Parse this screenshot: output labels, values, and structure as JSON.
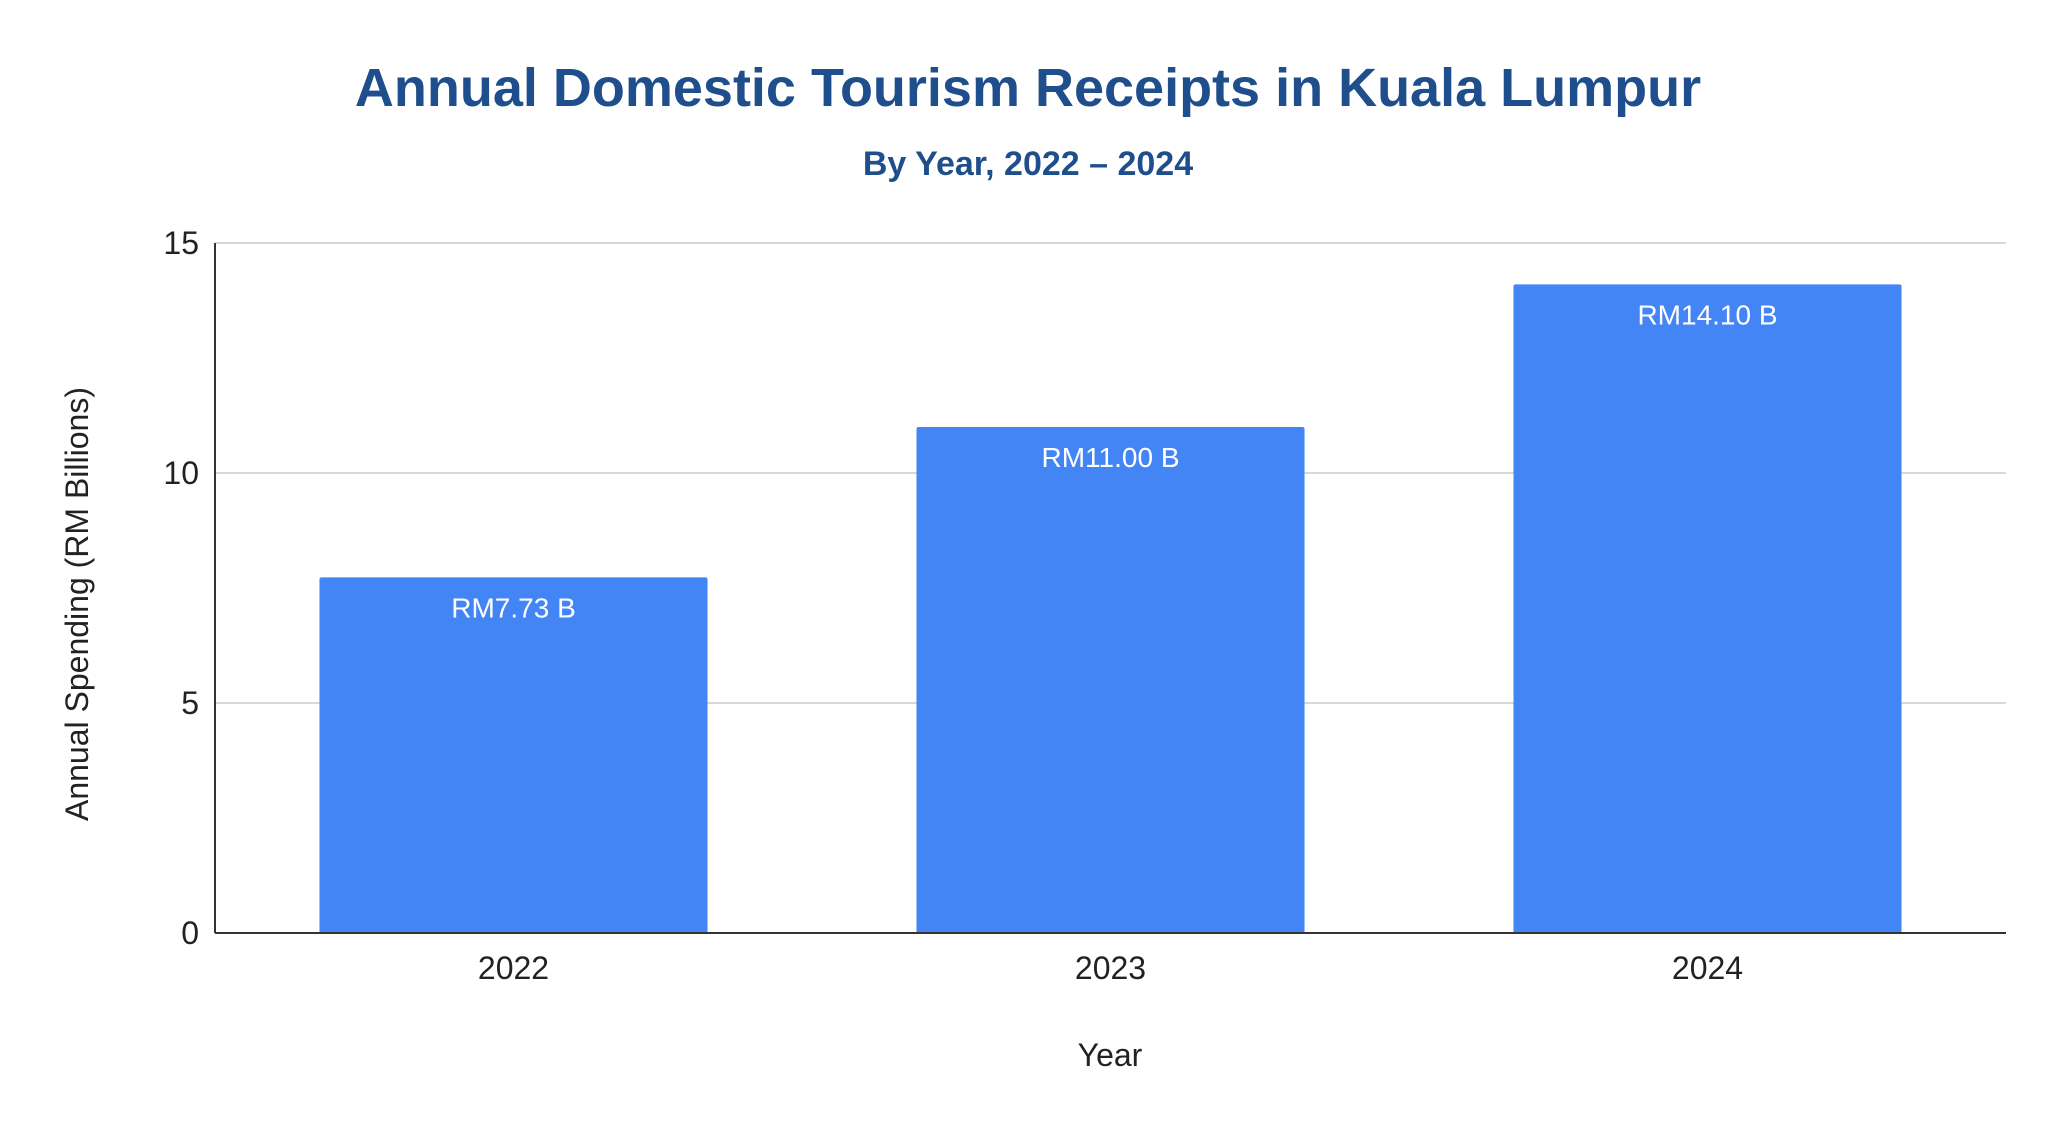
{
  "colors": {
    "title": "#1f4e8c",
    "bar": "#4385f5",
    "bar_label": "#ffffff",
    "grid": "#cccccc",
    "axis": "#333333"
  },
  "chart_data": {
    "type": "bar",
    "title": "Annual Domestic Tourism Receipts in Kuala Lumpur",
    "subtitle": "By Year, 2022 – 2024",
    "xlabel": "Year",
    "ylabel": "Annual Spending (RM Billions)",
    "categories": [
      "2022",
      "2023",
      "2024"
    ],
    "values": [
      7.73,
      11.0,
      14.1
    ],
    "data_labels": [
      "RM7.73 B",
      "RM11.00 B",
      "RM14.10 B"
    ],
    "ylim": [
      0,
      15
    ],
    "yticks": [
      0,
      5,
      10,
      15
    ],
    "grid": true,
    "legend": "none"
  }
}
